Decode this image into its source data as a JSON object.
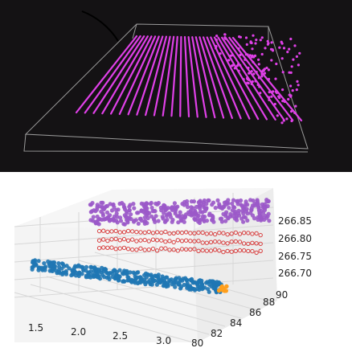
{
  "chart_data": [
    {
      "type": "scatter",
      "projection": "3d",
      "background": "#141214",
      "colors": {
        "points": "#e040e8",
        "box": "#9a9a9a"
      },
      "series": [
        {
          "description_of_marks": "parallel scan lines of magenta points",
          "lines": 27
        }
      ],
      "grid": false,
      "axes_labels_visible": false
    },
    {
      "type": "scatter",
      "projection": "3d",
      "x_ticks": [
        "1.5",
        "2.0",
        "2.5",
        "3.0"
      ],
      "y_ticks": [
        "80",
        "82",
        "84",
        "86",
        "88",
        "90"
      ],
      "z_ticks": [
        "266.70",
        "266.75",
        "266.80",
        "266.85"
      ],
      "xlim": [
        1.2,
        3.3
      ],
      "ylim": [
        80,
        90
      ],
      "zlim": [
        266.68,
        266.88
      ],
      "grid": true,
      "colors": {
        "purple": "#9b59c9",
        "red": "#d94040",
        "blue": "#1f77b4",
        "orange": "#ff9f1c"
      },
      "series": [
        {
          "color": "#9b59c9",
          "z": 266.845,
          "x": [
            1.3,
            3.2
          ],
          "kind": "band"
        },
        {
          "color": "#d94040",
          "z": 266.8,
          "x": [
            1.4,
            3.1
          ],
          "kind": "row"
        },
        {
          "color": "#d94040",
          "z": 266.775,
          "x": [
            1.4,
            3.1
          ],
          "kind": "row"
        },
        {
          "color": "#d94040",
          "z": 266.75,
          "x": [
            1.4,
            3.1
          ],
          "kind": "row"
        },
        {
          "color": "#1f77b4",
          "z": 266.7,
          "x": [
            1.2,
            3.2
          ],
          "kind": "band"
        },
        {
          "color": "#ff9f1c",
          "z": 266.7,
          "x": [
            3.15,
            3.25
          ],
          "kind": "cap"
        }
      ]
    }
  ]
}
